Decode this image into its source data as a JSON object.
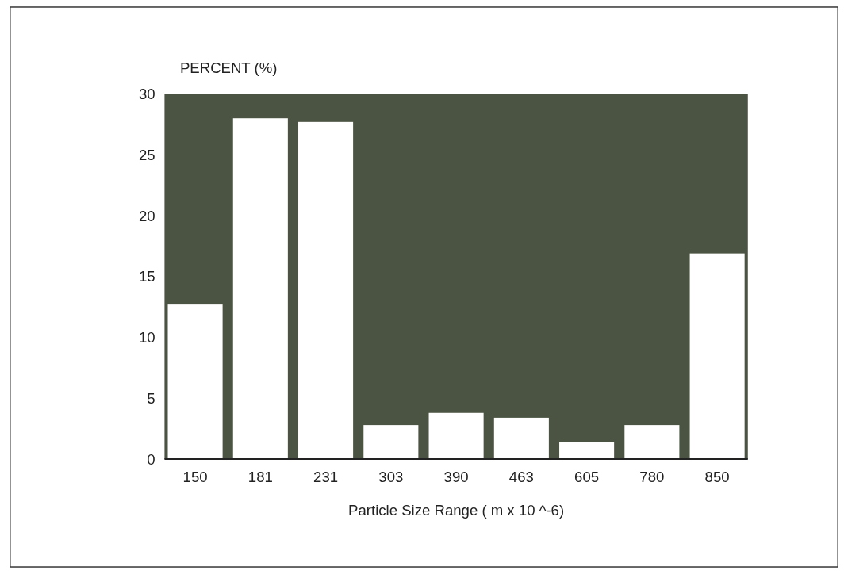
{
  "chart_data": {
    "type": "bar",
    "ylabel": "PERCENT (%)",
    "xlabel": "Particle Size Range ( m x 10 ^-6)",
    "categories": [
      "150",
      "181",
      "231",
      "303",
      "390",
      "463",
      "605",
      "780",
      "850"
    ],
    "series": [
      {
        "color": "#ffffff",
        "values": [
          12.7,
          28.0,
          27.7,
          2.8,
          3.8,
          3.4,
          1.4,
          2.8,
          16.9
        ]
      }
    ],
    "ylim": [
      0,
      30
    ],
    "yticks": [
      0,
      5,
      10,
      15,
      20,
      25,
      30
    ],
    "grid": false
  }
}
